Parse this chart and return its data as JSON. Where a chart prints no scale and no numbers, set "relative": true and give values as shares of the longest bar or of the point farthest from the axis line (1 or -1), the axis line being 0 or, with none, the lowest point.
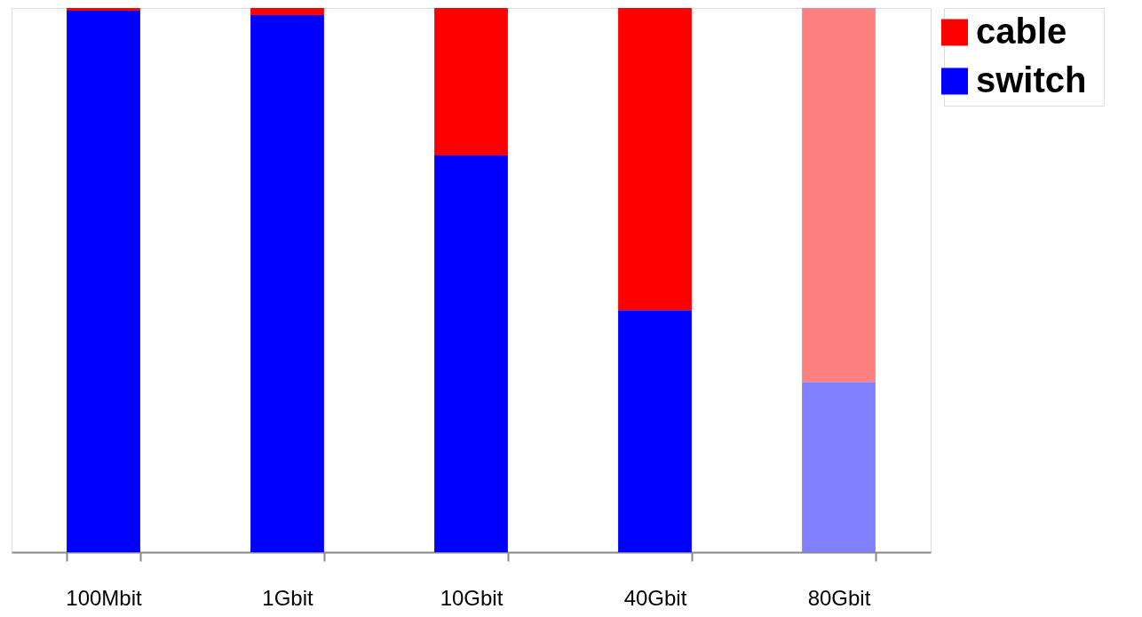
{
  "chart_data": {
    "type": "bar",
    "stacked": true,
    "relative": true,
    "legend": "top right",
    "grid": false,
    "categories": [
      "100Mbit",
      "1Gbit",
      "10Gbit",
      "40Gbit",
      "80Gbit"
    ],
    "series": [
      {
        "name": "switch",
        "color": "#0000ff",
        "colors": [
          "#0000ff",
          "#0000ff",
          "#0000ff",
          "#0000ff",
          "#8080ff"
        ],
        "values": [
          0.995,
          0.987,
          0.729,
          0.445,
          0.313
        ]
      },
      {
        "name": "cable",
        "color": "#ff0000",
        "colors": [
          "#ff0000",
          "#ff0000",
          "#ff0000",
          "#ff0000",
          "#ff8080"
        ],
        "values": [
          0.005,
          0.013,
          0.271,
          0.555,
          0.687
        ]
      }
    ]
  }
}
